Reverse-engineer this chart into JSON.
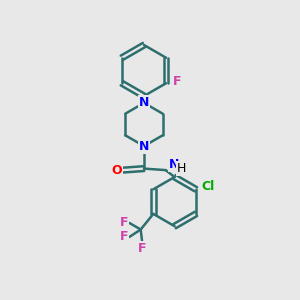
{
  "background_color": "#e8e8e8",
  "bond_color": "#2d6e6e",
  "bond_width": 1.8,
  "N_color": "#0000ff",
  "O_color": "#ff0000",
  "F_color": "#cc44aa",
  "Cl_color": "#00aa00",
  "figsize": [
    3.0,
    3.0
  ],
  "dpi": 100,
  "xlim": [
    0,
    10
  ],
  "ylim": [
    0,
    10
  ]
}
